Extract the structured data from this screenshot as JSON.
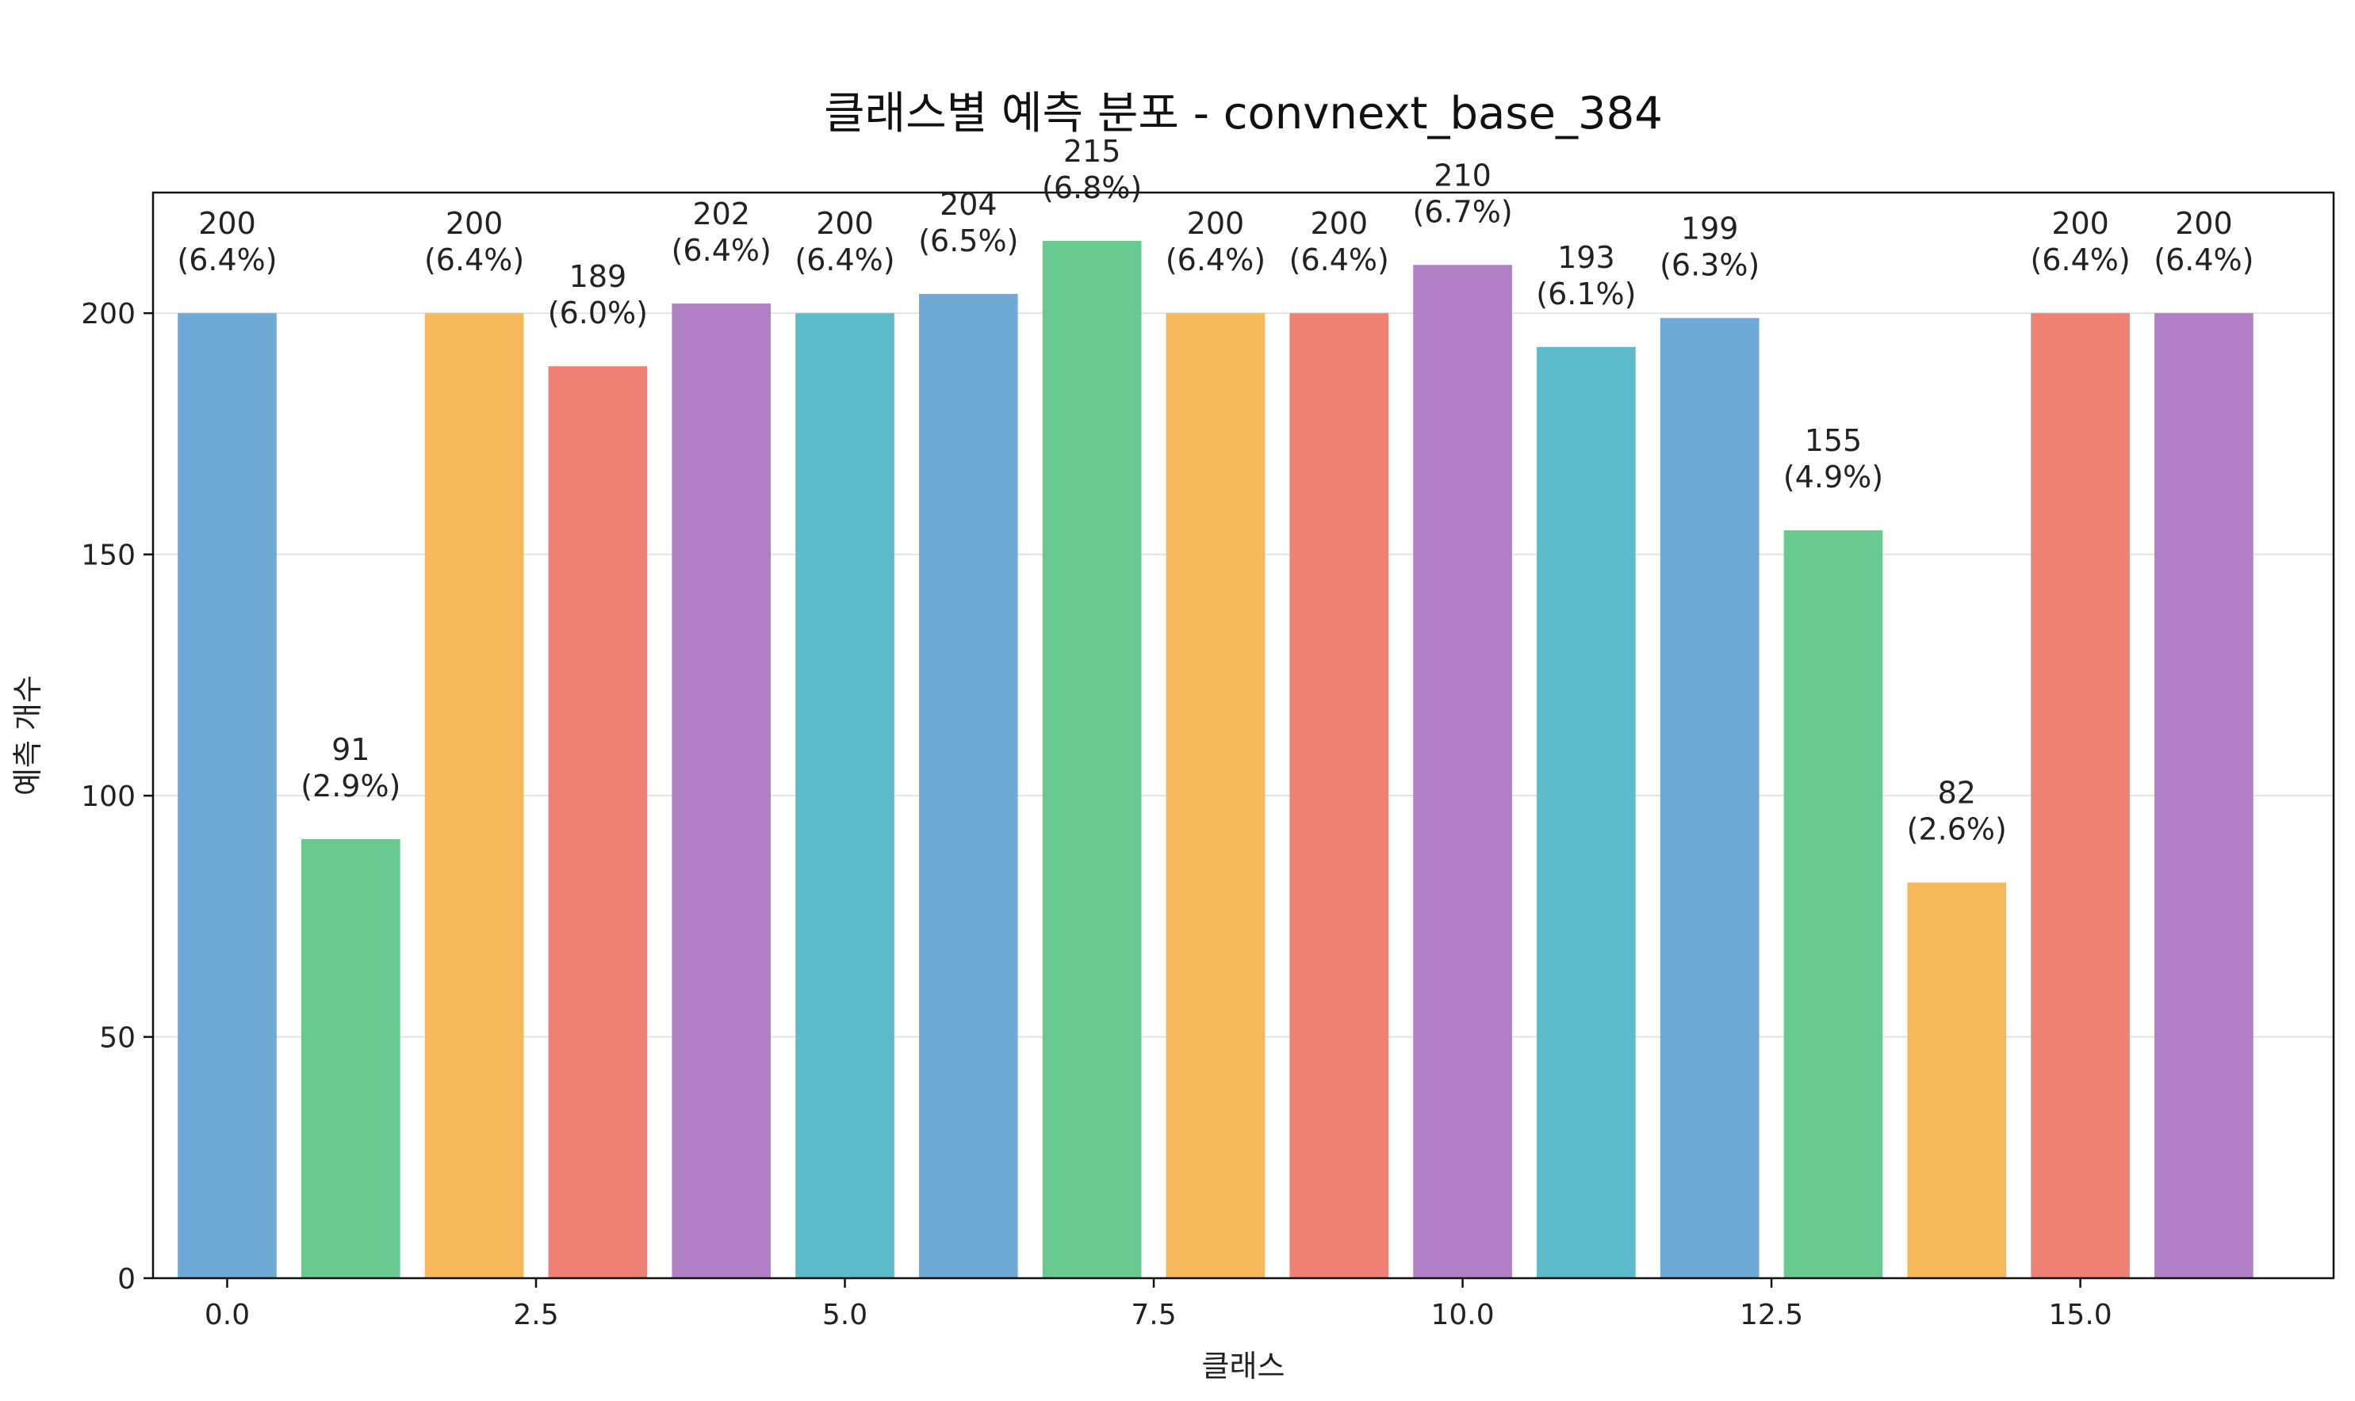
{
  "chart_data": {
    "type": "bar",
    "title": "클래스별 예측 분포 - convnext_base_384",
    "xlabel": "클래스",
    "ylabel": "예측 개수",
    "x": [
      0,
      1,
      2,
      3,
      4,
      5,
      6,
      7,
      8,
      9,
      10,
      11,
      12,
      13,
      14,
      15,
      16
    ],
    "values": [
      200,
      91,
      200,
      189,
      202,
      200,
      204,
      215,
      200,
      200,
      210,
      193,
      199,
      155,
      82,
      200,
      200
    ],
    "data_labels": [
      {
        "count": "200",
        "pct": "(6.4%)"
      },
      {
        "count": "91",
        "pct": "(2.9%)"
      },
      {
        "count": "200",
        "pct": "(6.4%)"
      },
      {
        "count": "189",
        "pct": "(6.0%)"
      },
      {
        "count": "202",
        "pct": "(6.4%)"
      },
      {
        "count": "200",
        "pct": "(6.4%)"
      },
      {
        "count": "204",
        "pct": "(6.5%)"
      },
      {
        "count": "215",
        "pct": "(6.8%)"
      },
      {
        "count": "200",
        "pct": "(6.4%)"
      },
      {
        "count": "200",
        "pct": "(6.4%)"
      },
      {
        "count": "210",
        "pct": "(6.7%)"
      },
      {
        "count": "193",
        "pct": "(6.1%)"
      },
      {
        "count": "199",
        "pct": "(6.3%)"
      },
      {
        "count": "155",
        "pct": "(4.9%)"
      },
      {
        "count": "82",
        "pct": "(2.6%)"
      },
      {
        "count": "200",
        "pct": "(6.4%)"
      },
      {
        "count": "200",
        "pct": "(6.4%)"
      }
    ],
    "colors": [
      "#6eaad5",
      "#67c98e",
      "#f5b85a",
      "#ee8173",
      "#b07fc6",
      "#5dbbcb",
      "#6eaad5",
      "#67c98e",
      "#f5b85a",
      "#ee8173",
      "#b07fc6",
      "#5dbbcb",
      "#6eaad5",
      "#67c98e",
      "#f5b85a",
      "#ee8173",
      "#b07fc6"
    ],
    "xlim": [
      -0.6,
      17.05
    ],
    "ylim": [
      0,
      225
    ],
    "xticks": [
      0,
      2.5,
      5,
      7.5,
      10,
      12.5,
      15
    ],
    "xtick_labels": [
      "0.0",
      "2.5",
      "5.0",
      "7.5",
      "10.0",
      "12.5",
      "15.0"
    ],
    "yticks": [
      0,
      50,
      100,
      150,
      200
    ],
    "ytick_labels": [
      "0",
      "50",
      "100",
      "150",
      "200"
    ],
    "grid": "y",
    "legend": "none"
  }
}
